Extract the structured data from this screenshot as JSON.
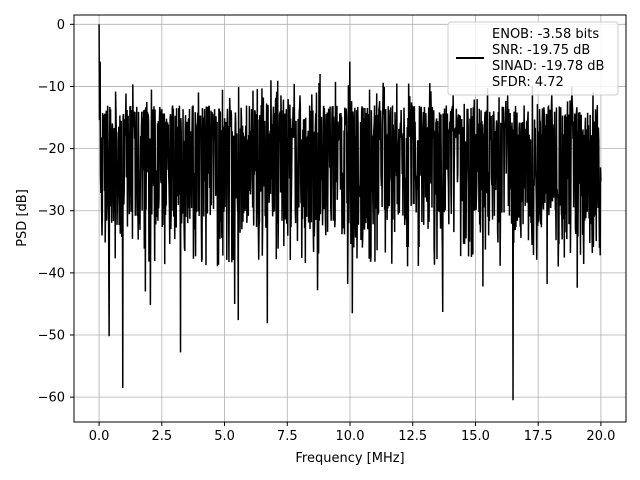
{
  "chart_data": {
    "type": "line",
    "xlabel": "Frequency [MHz]",
    "ylabel": "PSD [dB]",
    "xlim": [
      -1,
      21
    ],
    "ylim": [
      -64,
      1.5
    ],
    "xticks": [
      0,
      2.5,
      5,
      7.5,
      10,
      12.5,
      15,
      17.5,
      20
    ],
    "xtick_labels": [
      "0.0",
      "2.5",
      "5.0",
      "7.5",
      "10.0",
      "12.5",
      "15.0",
      "17.5",
      "20.0"
    ],
    "yticks": [
      0,
      -10,
      -20,
      -30,
      -40,
      -50,
      -60
    ],
    "ytick_labels": [
      "0",
      "−10",
      "−20",
      "−30",
      "−40",
      "−50",
      "−60"
    ],
    "grid": true,
    "legend_position": "top-right",
    "line_color": "#000000",
    "series": [
      {
        "noise_floor_db": -21,
        "x_range": [
          0,
          20
        ],
        "points": 1400,
        "peaks": [
          {
            "x": 0.0,
            "y": 0
          },
          {
            "x": 0.05,
            "y": -6
          },
          {
            "x": 10.0,
            "y": -6
          },
          {
            "x": 8.8,
            "y": -8
          },
          {
            "x": 6.85,
            "y": -9
          }
        ],
        "dips": [
          {
            "x": 0.95,
            "y": -58.5
          },
          {
            "x": 16.5,
            "y": -60.5
          },
          {
            "x": 3.25,
            "y": -52.8
          },
          {
            "x": 0.4,
            "y": -50.2
          },
          {
            "x": 10.1,
            "y": -46.5
          },
          {
            "x": 13.7,
            "y": -46.3
          },
          {
            "x": 5.55,
            "y": -47.6
          },
          {
            "x": 6.7,
            "y": -48.1
          },
          {
            "x": 2.05,
            "y": -45.2
          },
          {
            "x": 1.85,
            "y": -43
          },
          {
            "x": 5.4,
            "y": -45
          },
          {
            "x": 8.7,
            "y": -42.8
          },
          {
            "x": 9.9,
            "y": -41.8
          },
          {
            "x": 15.3,
            "y": -42.2
          },
          {
            "x": 17.85,
            "y": -41.8
          },
          {
            "x": 19.05,
            "y": -42.4
          }
        ]
      }
    ],
    "legend_lines": [
      "ENOB: -3.58 bits",
      "SNR: -19.75 dB",
      "SINAD: -19.78 dB",
      "SFDR: 4.72"
    ]
  }
}
